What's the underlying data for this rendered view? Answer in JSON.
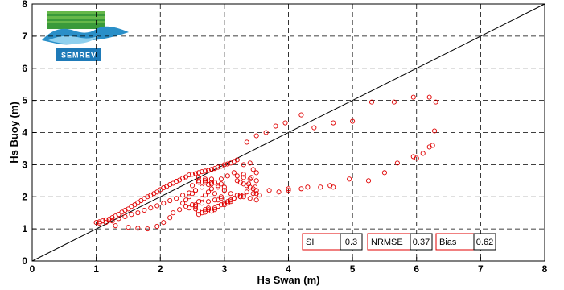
{
  "chart_data": {
    "type": "scatter",
    "title": "",
    "xlabel": "Hs Swan (m)",
    "ylabel": "Hs Buoy (m)",
    "xlim": [
      0,
      8
    ],
    "ylim": [
      0,
      8
    ],
    "xticks": [
      0,
      1,
      2,
      3,
      4,
      5,
      6,
      7,
      8
    ],
    "yticks": [
      0,
      1,
      2,
      3,
      4,
      5,
      6,
      7,
      8
    ],
    "grid": true,
    "grid_style": "dashed",
    "reference_line": {
      "x": [
        0,
        8
      ],
      "y": [
        0,
        8
      ],
      "color": "#000000"
    },
    "marker": {
      "shape": "circle",
      "fill": "none",
      "color": "#e00000"
    },
    "series": [
      {
        "x": [
          1.0,
          1.05,
          1.1,
          1.15,
          1.2,
          1.25,
          1.3,
          1.35,
          1.4,
          1.45,
          1.5,
          1.55,
          1.6,
          1.65,
          1.7,
          1.75,
          1.8,
          1.85,
          1.9,
          1.95,
          2.0,
          2.05,
          2.1,
          2.15,
          2.2,
          2.25,
          2.3,
          2.35,
          2.4,
          2.45,
          2.5,
          2.55,
          2.6,
          2.65,
          2.7,
          2.75,
          2.8,
          2.85,
          2.9,
          2.95,
          3.0,
          3.05,
          3.1,
          3.15,
          3.2,
          1.05,
          1.15,
          1.25,
          1.35,
          1.45,
          1.55,
          1.65,
          1.75,
          1.85,
          1.95,
          2.05,
          2.15,
          2.25,
          2.35,
          2.45,
          2.55,
          2.65,
          2.75,
          2.85,
          2.95,
          3.05,
          3.15,
          1.3,
          1.5,
          1.65,
          1.8,
          1.95,
          2.05,
          2.15,
          2.2,
          2.3,
          2.4,
          2.5,
          2.55,
          2.6,
          2.7,
          2.75,
          2.85,
          2.9,
          2.95,
          3.0,
          3.05,
          3.1,
          3.15,
          3.25,
          3.3,
          2.35,
          2.4,
          2.45,
          2.5,
          2.55,
          2.6,
          2.65,
          2.7,
          2.75,
          2.8,
          2.85,
          2.9,
          2.95,
          3.0,
          2.5,
          2.6,
          2.7,
          2.8,
          2.9,
          3.0,
          3.1,
          3.2,
          3.3,
          3.4,
          3.5,
          2.55,
          2.65,
          2.75,
          2.85,
          2.95,
          2.6,
          2.7,
          2.8,
          2.9,
          3.0,
          3.2,
          3.25,
          3.3,
          3.35,
          3.4,
          3.45,
          3.5,
          3.3,
          3.4,
          3.5,
          3.35,
          3.45,
          3.25,
          3.55,
          3.3,
          3.4,
          3.45,
          3.5,
          3.2,
          3.3,
          3.38,
          3.48,
          3.15,
          3.25,
          3.42,
          2.6,
          2.65,
          2.7,
          2.75,
          2.8,
          2.85,
          2.9,
          3.0,
          3.05,
          3.1,
          2.45,
          2.55,
          2.7,
          2.8,
          2.6,
          2.95,
          3.1,
          3.35,
          3.5,
          3.65,
          3.8,
          3.95,
          4.2,
          4.4,
          4.7,
          5.0,
          5.3,
          5.65,
          5.95,
          6.2,
          6.3,
          6.28,
          3.5,
          3.7,
          3.85,
          4.0,
          4.2,
          4.5,
          4.7,
          4.95,
          5.25,
          5.5,
          5.7,
          5.95,
          6.25,
          6.2,
          6.1,
          6.0,
          4.0,
          4.3,
          4.65
        ],
        "y": [
          1.2,
          1.22,
          1.25,
          1.28,
          1.3,
          1.35,
          1.4,
          1.45,
          1.52,
          1.58,
          1.62,
          1.7,
          1.75,
          1.82,
          1.88,
          1.95,
          2.0,
          2.05,
          2.1,
          2.15,
          2.22,
          2.28,
          2.32,
          2.38,
          2.42,
          2.48,
          2.52,
          2.58,
          2.62,
          2.68,
          2.7,
          2.72,
          2.75,
          2.78,
          2.8,
          2.82,
          2.85,
          2.88,
          2.92,
          2.95,
          3.0,
          3.02,
          3.05,
          3.1,
          3.15,
          1.18,
          1.2,
          1.25,
          1.32,
          1.38,
          1.45,
          1.5,
          1.58,
          1.65,
          1.72,
          1.8,
          1.88,
          1.95,
          2.05,
          2.12,
          2.2,
          2.3,
          2.38,
          2.45,
          2.55,
          2.65,
          2.75,
          1.1,
          1.05,
          1.02,
          1.0,
          1.08,
          1.2,
          1.35,
          1.5,
          1.6,
          1.7,
          1.75,
          1.62,
          1.55,
          1.52,
          1.6,
          1.65,
          1.7,
          1.75,
          1.8,
          1.85,
          1.9,
          1.95,
          2.0,
          2.05,
          1.8,
          1.9,
          2.0,
          2.1,
          2.2,
          1.85,
          1.95,
          2.05,
          2.15,
          2.25,
          2.1,
          1.9,
          2.0,
          2.2,
          2.35,
          2.45,
          2.5,
          2.4,
          2.3,
          2.2,
          2.1,
          2.05,
          2.0,
          1.95,
          1.9,
          1.75,
          1.8,
          1.85,
          1.9,
          1.95,
          2.6,
          2.55,
          2.45,
          2.35,
          2.3,
          2.5,
          2.45,
          2.4,
          2.35,
          2.3,
          2.25,
          2.2,
          2.6,
          2.55,
          2.5,
          2.15,
          2.1,
          2.05,
          2.05,
          3.0,
          3.05,
          2.85,
          2.75,
          2.65,
          2.7,
          2.4,
          2.3,
          1.95,
          2.0,
          2.6,
          1.45,
          1.5,
          1.6,
          1.65,
          1.55,
          1.6,
          1.7,
          1.75,
          1.8,
          1.85,
          1.65,
          1.7,
          2.45,
          2.55,
          2.5,
          2.4,
          1.9,
          3.7,
          3.9,
          4.0,
          4.2,
          4.3,
          4.55,
          4.15,
          4.3,
          4.35,
          4.95,
          4.95,
          5.1,
          5.1,
          4.95,
          4.05,
          2.1,
          2.2,
          2.15,
          2.25,
          2.25,
          2.3,
          2.3,
          2.55,
          2.5,
          2.75,
          3.05,
          3.25,
          3.6,
          3.55,
          3.35,
          3.2,
          2.2,
          2.3,
          2.35
        ]
      }
    ],
    "stats": [
      {
        "label": "SI",
        "value": "0.3"
      },
      {
        "label": "NRMSE",
        "value": "0.37"
      },
      {
        "label": "Bias",
        "value": "0.62"
      }
    ]
  },
  "logo": {
    "text": "SEMREV"
  }
}
